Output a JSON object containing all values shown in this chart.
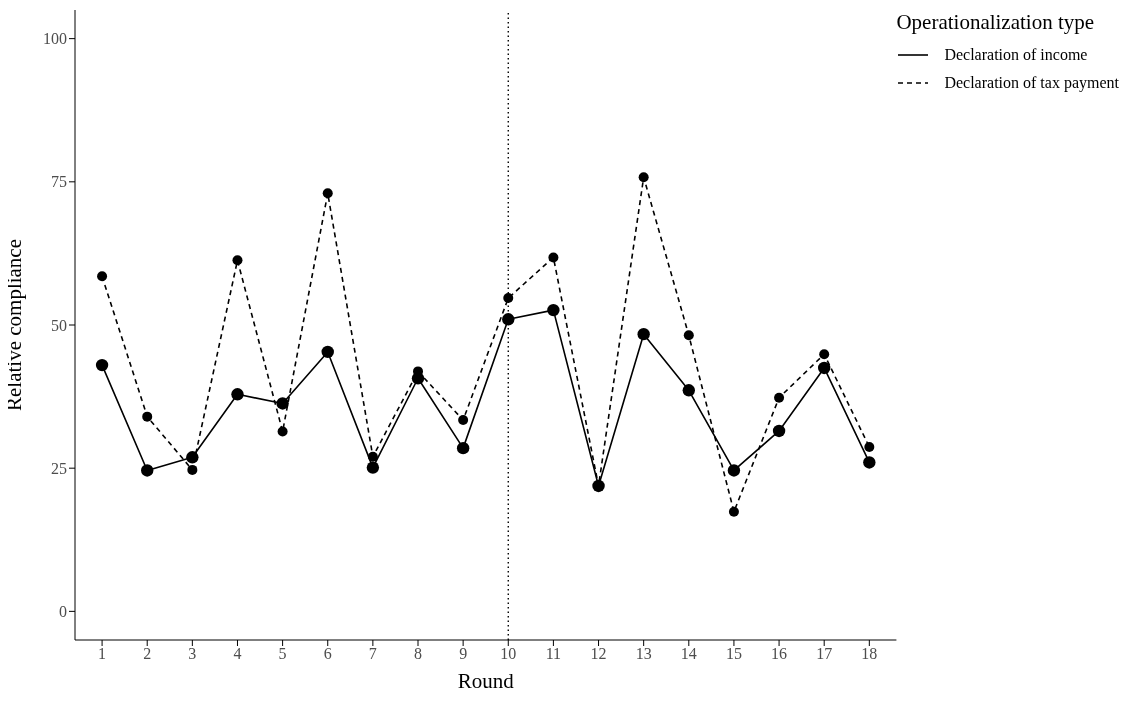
{
  "chart_data": {
    "type": "line",
    "xlabel": "Round",
    "ylabel": "Relative compliance",
    "legend_title": "Operationalization type",
    "x": [
      1,
      2,
      3,
      4,
      5,
      6,
      7,
      8,
      9,
      10,
      11,
      12,
      13,
      14,
      15,
      16,
      17,
      18
    ],
    "xlim": [
      0.4,
      18.6
    ],
    "xticks": [
      1,
      2,
      3,
      4,
      5,
      6,
      7,
      8,
      9,
      10,
      11,
      12,
      13,
      14,
      15,
      16,
      17,
      18
    ],
    "ylim": [
      -5,
      105
    ],
    "yticks": [
      0,
      25,
      50,
      75,
      100
    ],
    "series": [
      {
        "name": "Declaration of income",
        "color": "#000000",
        "line_style": "solid",
        "values": [
          43.0,
          24.6,
          26.9,
          37.9,
          36.3,
          45.3,
          25.1,
          40.7,
          28.5,
          51.0,
          52.6,
          21.9,
          48.4,
          38.6,
          24.6,
          31.5,
          42.5,
          26.0
        ]
      },
      {
        "name": "Declaration of tax payment",
        "color": "#000000",
        "line_style": "dashed",
        "values": [
          58.5,
          34.0,
          24.7,
          61.3,
          31.4,
          73.0,
          27.0,
          41.9,
          33.4,
          54.7,
          61.8,
          21.9,
          75.8,
          48.2,
          17.4,
          37.3,
          44.9,
          28.7
        ]
      }
    ],
    "ref_lines": [
      {
        "axis": "x",
        "value": 10,
        "line_style": "dotted",
        "color": "#000000"
      }
    ],
    "marker": "circle",
    "grid": false,
    "legend": "top right"
  }
}
